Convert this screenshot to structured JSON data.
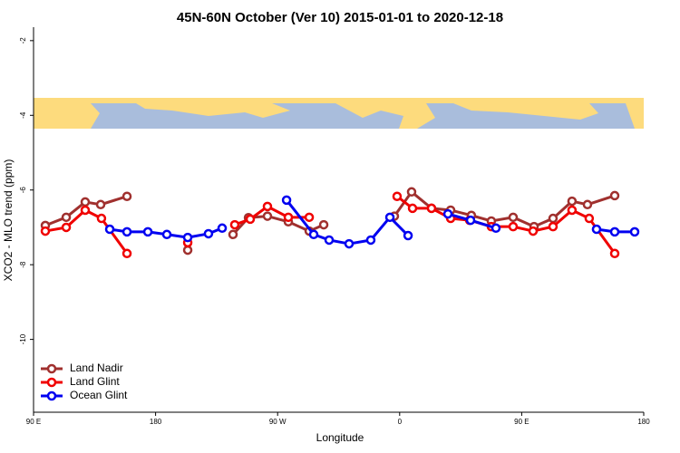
{
  "chart_data": {
    "type": "line",
    "title": "45N-60N October (Ver 10)   2015-01-01 to 2020-12-18",
    "xlabel": "Longitude",
    "ylabel": "XCO2 - MLO trend (ppm)",
    "xlim": [
      90,
      540
    ],
    "xticks": [
      {
        "value": 90,
        "label": "90 E"
      },
      {
        "value": 180,
        "label": "180"
      },
      {
        "value": 270,
        "label": "90 W"
      },
      {
        "value": 360,
        "label": "0"
      },
      {
        "value": 450,
        "label": "90 E"
      },
      {
        "value": 540,
        "label": "180"
      }
    ],
    "ylim": [
      -11.95,
      -1.64
    ],
    "yticks": [
      -2,
      -4,
      -6,
      -8,
      -10
    ],
    "legend": "bottom left",
    "series": [
      {
        "name": "Land Nadir",
        "color": "#a0302e",
        "x": [
          98.7,
          114.1,
          128.1,
          139.5,
          158.9,
          null,
          203.7,
          null,
          237.1,
          248.5,
          262.5,
          277.9,
          293.3,
          304.0,
          null,
          356.1,
          368.8,
          383.5,
          397.6,
          412.9,
          427.6,
          443.7,
          459.1,
          473.1,
          487.1,
          498.5,
          518.6
        ],
        "values": [
          -6.95,
          -6.73,
          -6.32,
          -6.39,
          -6.17,
          null,
          -7.61,
          null,
          -7.19,
          -6.74,
          -6.7,
          -6.85,
          -7.1,
          -6.93,
          null,
          -6.7,
          -6.05,
          -6.49,
          -6.54,
          -6.68,
          -6.83,
          -6.73,
          -6.98,
          -6.76,
          -6.3,
          -6.39,
          -6.15
        ]
      },
      {
        "name": "Land Glint",
        "color": "#f00000",
        "x": [
          98.7,
          114.1,
          128.1,
          140.1,
          158.9,
          null,
          203.7,
          null,
          238.4,
          249.8,
          262.5,
          277.9,
          293.3,
          null,
          358.1,
          369.5,
          383.5,
          397.6,
          411.6,
          427.6,
          443.7,
          458.4,
          473.1,
          487.1,
          499.8,
          518.6
        ],
        "values": [
          -7.1,
          -7.0,
          -6.54,
          -6.76,
          -7.7,
          null,
          -7.41,
          null,
          -6.93,
          -6.78,
          -6.44,
          -6.73,
          -6.73,
          null,
          -6.17,
          -6.49,
          -6.49,
          -6.76,
          -6.81,
          -6.98,
          -6.98,
          -7.1,
          -6.98,
          -6.54,
          -6.76,
          -7.7
        ]
      },
      {
        "name": "Ocean Glint",
        "color": "#0000f0",
        "x": [
          146.2,
          158.9,
          174.3,
          188.3,
          203.7,
          219.0,
          229.1,
          null,
          276.6,
          296.6,
          308.0,
          322.7,
          338.7,
          352.8,
          366.2,
          null,
          395.6,
          412.3,
          431.0,
          null,
          505.2,
          518.6,
          533.3
        ],
        "values": [
          -7.05,
          -7.12,
          -7.12,
          -7.19,
          -7.27,
          -7.17,
          -7.02,
          null,
          -6.27,
          -7.19,
          -7.34,
          -7.44,
          -7.34,
          -6.73,
          -7.22,
          null,
          -6.64,
          -6.81,
          -7.02,
          null,
          -7.05,
          -7.12,
          -7.12
        ]
      }
    ]
  }
}
